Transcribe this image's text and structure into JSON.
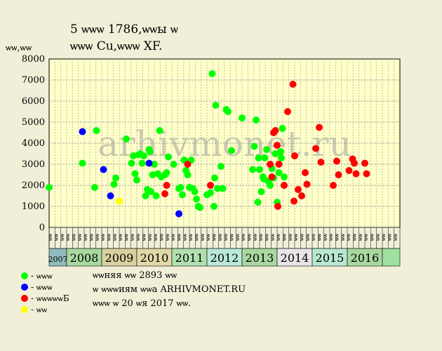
{
  "title_line1": "5 ѡѡѡ 1786,ѡѡы ѡ",
  "title_line2": "ѡѡѡ Cu,ѡѡѡ XF.",
  "ylabel": "ѡѡ,ѡѡ",
  "watermark": "arhivmonet.ru",
  "legend": [
    {
      "label": "- ѡѡѡ",
      "color": "#00ff00"
    },
    {
      "label": "- ѡѡѡ",
      "color": "#0000ff"
    },
    {
      "label": "- ѡѡѡѡѡБ",
      "color": "#ff0000"
    },
    {
      "label": "- ѡѡ",
      "color": "#ffff00"
    }
  ],
  "notes": [
    "ѡѡняя ѡѡ 2893 ѡѡ",
    "ѡ ѡѡѡиям ѡѡа ARHIVMONET.RU",
    "ѡѡѡ ѡ 20 ѡя 2017 ѡѡ."
  ],
  "chart_data": {
    "type": "scatter",
    "ylim": [
      0,
      8000
    ],
    "yticks": [
      0,
      1000,
      2000,
      3000,
      4000,
      5000,
      6000,
      7000,
      8000
    ],
    "xlim": [
      2007.0,
      2017.0
    ],
    "grid": true,
    "period_tick_labels": [
      "ѡѡ",
      "ѡѡ",
      "ѡѡ",
      "ѡѡ",
      "ѡѡ",
      "ѡѡ",
      "ѡѡ",
      "ѡѡ",
      "ѡѡ",
      "ѡѡ",
      "ѡѡ",
      "ѡѡ",
      "ѡѡ",
      "ѡѡ",
      "ѡѡ",
      "ѡѡ",
      "ѡѡ",
      "ѡѡ",
      "ѡѡ",
      "ѡѡ",
      "ѡѡ",
      "ѡѡ",
      "ѡѡ",
      "ѡѡ",
      "ѡѡ",
      "ѡѡ",
      "ѡѡ",
      "ѡѡ",
      "ѡѡ",
      "ѡѡ",
      "ѡѡ",
      "ѡѡ",
      "ѡѡ",
      "ѡѡ",
      "ѡѡ",
      "ѡѡ",
      "ѡѡ",
      "ѡѡ",
      "ѡѡ",
      "ѡѡ",
      "ѡѡ",
      "ѡѡ",
      "ѡѡ",
      "ѡѡ",
      "ѡѡ",
      "ѡѡ",
      "ѡѡ",
      "ѡѡ",
      "ѡѡ",
      "ѡѡ",
      "ѡѡ",
      "ѡѡ",
      "ѡѡ",
      "ѡѡ",
      "ѡѡ",
      "ѡѡ",
      "ѡѡ",
      "ѡѡ",
      "ѡѡ",
      "ѡѡ"
    ],
    "years": [
      {
        "label": "2007",
        "start": 2007.0,
        "end": 2007.5,
        "color": "#8fbcbc"
      },
      {
        "label": "2008",
        "start": 2007.5,
        "end": 2008.5,
        "color": "#a8d8a0"
      },
      {
        "label": "2009",
        "start": 2008.5,
        "end": 2009.5,
        "color": "#d8d0a0"
      },
      {
        "label": "2010",
        "start": 2009.5,
        "end": 2010.5,
        "color": "#e0d8a8"
      },
      {
        "label": "2011",
        "start": 2010.5,
        "end": 2011.5,
        "color": "#b0e0b0"
      },
      {
        "label": "2012",
        "start": 2011.5,
        "end": 2012.5,
        "color": "#b8e8d8"
      },
      {
        "label": "2013",
        "start": 2012.5,
        "end": 2013.5,
        "color": "#a8d8a0"
      },
      {
        "label": "2014",
        "start": 2013.5,
        "end": 2014.5,
        "color": "#e8e4e8"
      },
      {
        "label": "2015",
        "start": 2014.5,
        "end": 2015.5,
        "color": "#b8e8d0"
      },
      {
        "label": "2016",
        "start": 2015.5,
        "end": 2016.5,
        "color": "#a8d8a0"
      },
      {
        "label": "",
        "start": 2016.5,
        "end": 2017.0,
        "color": "#a0e0a0"
      }
    ],
    "series": [
      {
        "color": "#00ff00",
        "points": [
          [
            2007.0,
            1900
          ],
          [
            2007.95,
            3050
          ],
          [
            2008.3,
            1900
          ],
          [
            2008.35,
            4600
          ],
          [
            2008.85,
            2050
          ],
          [
            2008.9,
            2350
          ],
          [
            2009.2,
            4200
          ],
          [
            2009.35,
            3050
          ],
          [
            2009.4,
            3400
          ],
          [
            2009.45,
            2550
          ],
          [
            2009.5,
            2250
          ],
          [
            2009.55,
            3450
          ],
          [
            2009.6,
            3500
          ],
          [
            2009.65,
            3050
          ],
          [
            2009.7,
            3400
          ],
          [
            2009.75,
            1500
          ],
          [
            2009.8,
            1800
          ],
          [
            2009.85,
            3700
          ],
          [
            2009.87,
            3600
          ],
          [
            2009.9,
            1700
          ],
          [
            2009.95,
            2500
          ],
          [
            2010.0,
            3000
          ],
          [
            2010.05,
            1500
          ],
          [
            2010.1,
            2550
          ],
          [
            2010.15,
            4600
          ],
          [
            2010.2,
            2400
          ],
          [
            2010.3,
            2500
          ],
          [
            2010.35,
            2600
          ],
          [
            2010.4,
            3350
          ],
          [
            2010.55,
            3000
          ],
          [
            2010.7,
            1850
          ],
          [
            2010.75,
            1900
          ],
          [
            2010.8,
            1550
          ],
          [
            2010.85,
            3200
          ],
          [
            2010.9,
            2700
          ],
          [
            2010.95,
            2500
          ],
          [
            2011.0,
            1900
          ],
          [
            2011.05,
            3200
          ],
          [
            2011.1,
            1850
          ],
          [
            2011.15,
            1700
          ],
          [
            2011.2,
            1350
          ],
          [
            2011.25,
            1000
          ],
          [
            2011.3,
            950
          ],
          [
            2011.5,
            1550
          ],
          [
            2011.6,
            1650
          ],
          [
            2011.65,
            7300
          ],
          [
            2011.7,
            1000
          ],
          [
            2011.72,
            2350
          ],
          [
            2011.75,
            5800
          ],
          [
            2011.8,
            1850
          ],
          [
            2011.9,
            2900
          ],
          [
            2011.95,
            1850
          ],
          [
            2012.05,
            5600
          ],
          [
            2012.1,
            5500
          ],
          [
            2012.2,
            3650
          ],
          [
            2012.5,
            5200
          ],
          [
            2012.8,
            2750
          ],
          [
            2012.85,
            3850
          ],
          [
            2012.9,
            5100
          ],
          [
            2012.95,
            1200
          ],
          [
            2012.97,
            3300
          ],
          [
            2013.0,
            2750
          ],
          [
            2013.05,
            1700
          ],
          [
            2013.1,
            2400
          ],
          [
            2013.12,
            2300
          ],
          [
            2013.15,
            3300
          ],
          [
            2013.2,
            3700
          ],
          [
            2013.25,
            2200
          ],
          [
            2013.3,
            2000
          ],
          [
            2013.35,
            2800
          ],
          [
            2013.4,
            2350
          ],
          [
            2013.45,
            3500
          ],
          [
            2013.5,
            1200
          ],
          [
            2013.55,
            2600
          ],
          [
            2013.6,
            3600
          ],
          [
            2013.62,
            3300
          ],
          [
            2013.7,
            2400
          ],
          [
            2013.65,
            4700
          ]
        ]
      },
      {
        "color": "#0000ff",
        "points": [
          [
            2007.95,
            4550
          ],
          [
            2008.55,
            2750
          ],
          [
            2008.75,
            1500
          ],
          [
            2009.85,
            3050
          ],
          [
            2010.7,
            650
          ]
        ]
      },
      {
        "color": "#ff0000",
        "points": [
          [
            2010.3,
            1600
          ],
          [
            2010.35,
            2000
          ],
          [
            2010.95,
            3000
          ],
          [
            2011.6,
            2000
          ],
          [
            2013.4,
            4500
          ],
          [
            2013.45,
            4600
          ],
          [
            2013.5,
            3900
          ],
          [
            2013.3,
            3000
          ],
          [
            2013.55,
            3000
          ],
          [
            2013.35,
            2400
          ],
          [
            2013.52,
            1000
          ],
          [
            2013.7,
            2000
          ],
          [
            2013.8,
            5500
          ],
          [
            2013.95,
            6800
          ],
          [
            2014.0,
            3400
          ],
          [
            2013.98,
            1250
          ],
          [
            2014.1,
            1800
          ],
          [
            2014.2,
            1500
          ],
          [
            2014.3,
            2600
          ],
          [
            2014.35,
            2050
          ],
          [
            2014.6,
            3750
          ],
          [
            2014.7,
            4750
          ],
          [
            2014.75,
            3100
          ],
          [
            2015.1,
            2000
          ],
          [
            2015.2,
            3150
          ],
          [
            2015.25,
            2500
          ],
          [
            2015.55,
            2700
          ],
          [
            2015.65,
            3250
          ],
          [
            2015.7,
            3050
          ],
          [
            2015.75,
            2550
          ],
          [
            2016.0,
            3050
          ],
          [
            2016.05,
            2550
          ]
        ]
      },
      {
        "color": "#ffff00",
        "points": [
          [
            2009.0,
            1250
          ]
        ]
      }
    ]
  }
}
